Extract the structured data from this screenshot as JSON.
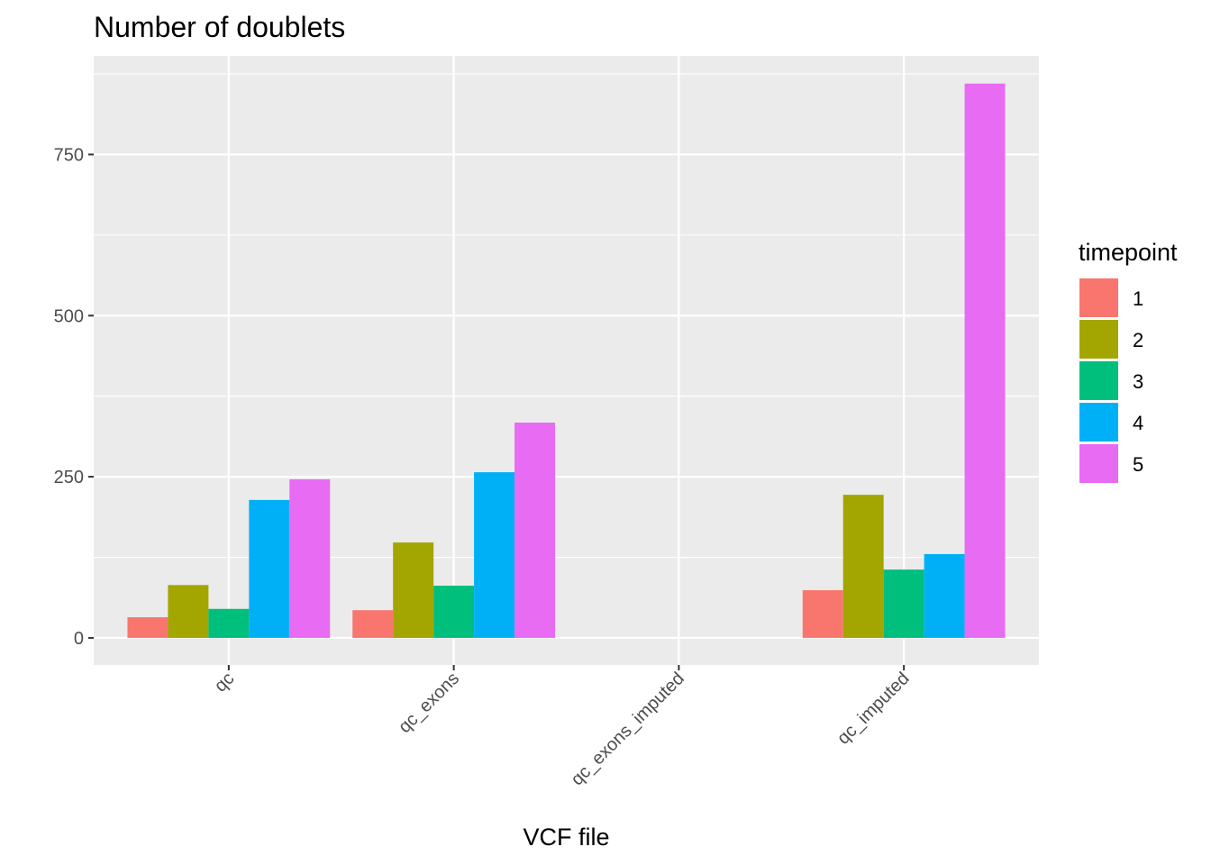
{
  "chart_data": {
    "type": "bar",
    "title": "Number of doublets",
    "xlabel": "VCF file",
    "ylabel": "",
    "categories": [
      "qc",
      "qc_exons",
      "qc_exons_imputed",
      "qc_imputed"
    ],
    "series": [
      {
        "name": "1",
        "color": "#F8766D",
        "values": [
          32,
          43,
          0,
          74
        ]
      },
      {
        "name": "2",
        "color": "#A3A500",
        "values": [
          82,
          148,
          0,
          222
        ]
      },
      {
        "name": "3",
        "color": "#00BF7D",
        "values": [
          45,
          81,
          0,
          106
        ]
      },
      {
        "name": "4",
        "color": "#00B0F6",
        "values": [
          214,
          257,
          0,
          130
        ]
      },
      {
        "name": "5",
        "color": "#E76BF3",
        "values": [
          246,
          334,
          0,
          860
        ]
      }
    ],
    "ylim": [
      -42,
      903
    ],
    "yticks": [
      0,
      250,
      500,
      750
    ],
    "ytick_labels": [
      "0",
      "250",
      "500",
      "750"
    ],
    "legend": {
      "title": "timepoint",
      "position": "right"
    },
    "grid": true,
    "panel_background": "#EBEBEB",
    "grid_color": "#FFFFFF"
  }
}
